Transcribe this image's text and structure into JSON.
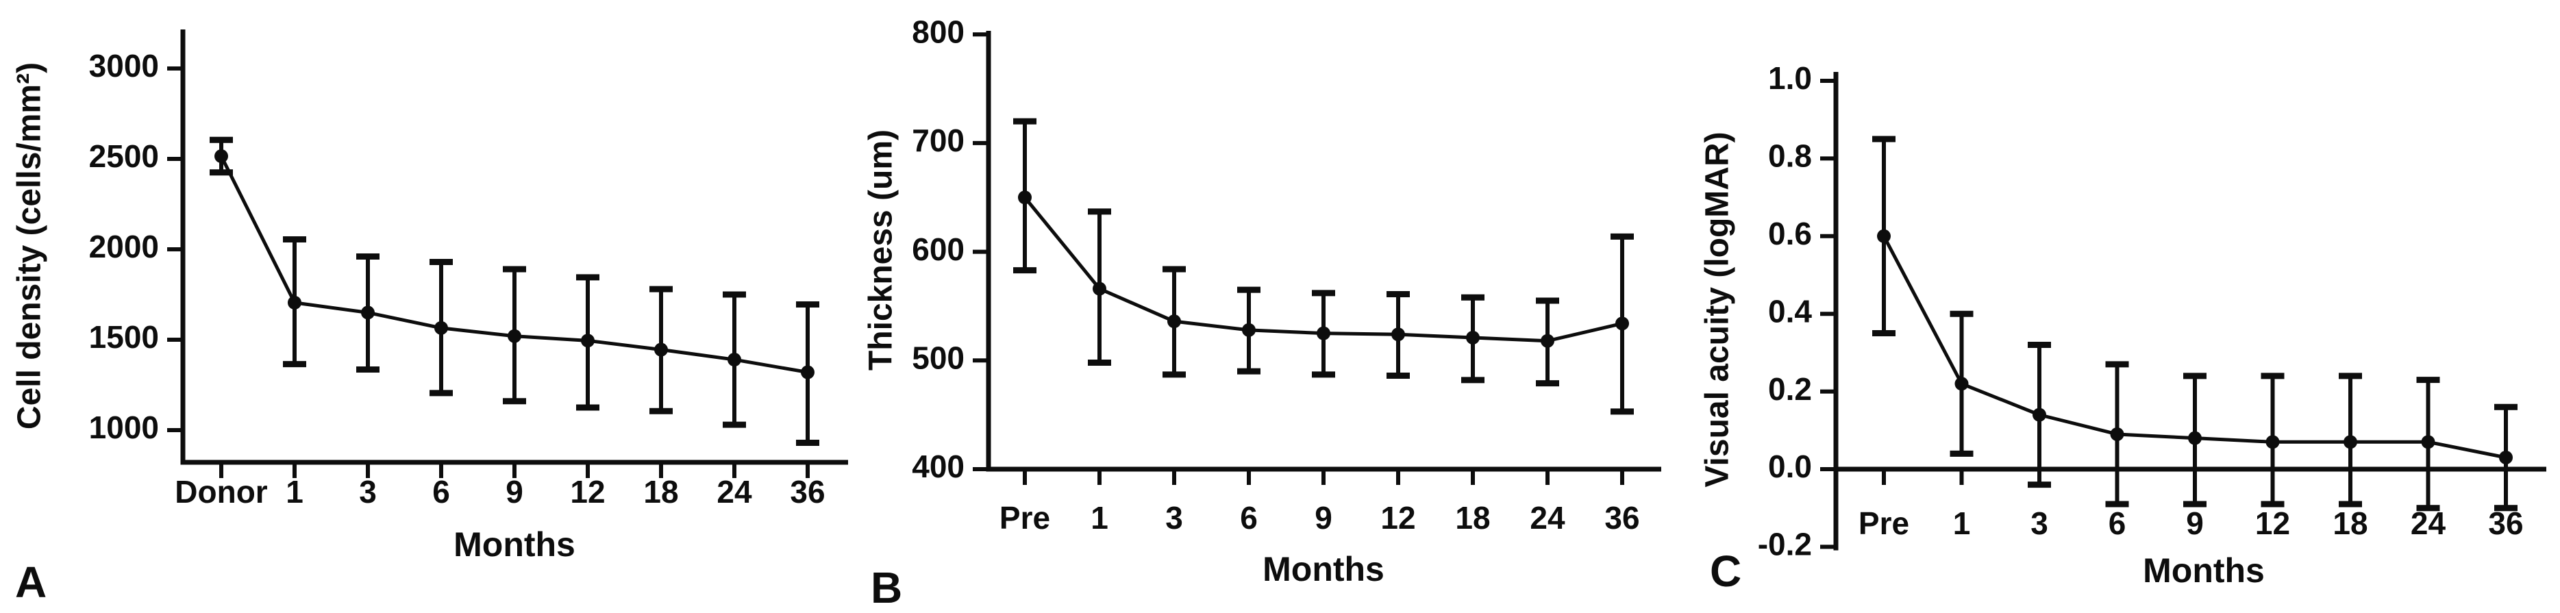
{
  "figure": {
    "background_color": "#ffffff",
    "ink_color": "#0d0d0d"
  },
  "chart_data": [
    {
      "type": "line",
      "panel_label": "A",
      "ylabel": "Cell density (cells/mm²)",
      "xlabel": "Months",
      "categories": [
        "Donor",
        "1",
        "3",
        "6",
        "9",
        "12",
        "18",
        "24",
        "36"
      ],
      "values": [
        2515,
        1705,
        1650,
        1565,
        1520,
        1495,
        1445,
        1390,
        1320
      ],
      "error_low": [
        2425,
        1365,
        1335,
        1205,
        1160,
        1125,
        1105,
        1030,
        930
      ],
      "error_high": [
        2605,
        2055,
        1960,
        1930,
        1890,
        1845,
        1780,
        1750,
        1695
      ],
      "yticks": [
        1000,
        1500,
        2000,
        2500,
        3000
      ],
      "ytick_labels": [
        "1000",
        "1500",
        "2000",
        "2500",
        "3000"
      ],
      "ylim": [
        820,
        3215
      ],
      "x_axis_at_value": 820,
      "grid": false,
      "legend": "none",
      "marker": "filled-circle",
      "error_bars": true
    },
    {
      "type": "line",
      "panel_label": "B",
      "ylabel": "Thickness (um)",
      "xlabel": "Months",
      "categories": [
        "Pre",
        "1",
        "3",
        "6",
        "9",
        "12",
        "18",
        "24",
        "36"
      ],
      "values": [
        650,
        566,
        536,
        528,
        525,
        524,
        521,
        518,
        534
      ],
      "error_low": [
        583,
        498,
        487,
        490,
        487,
        486,
        482,
        479,
        453
      ],
      "error_high": [
        720,
        637,
        584,
        565,
        562,
        561,
        558,
        555,
        614
      ],
      "yticks": [
        400,
        500,
        600,
        700,
        800
      ],
      "ytick_labels": [
        "400",
        "500",
        "600",
        "700",
        "800"
      ],
      "ylim": [
        400,
        803
      ],
      "x_axis_at_value": 400,
      "grid": false,
      "legend": "none",
      "marker": "filled-circle",
      "error_bars": true
    },
    {
      "type": "line",
      "panel_label": "C",
      "ylabel": "Visual acuity (logMAR)",
      "xlabel": "Months",
      "categories": [
        "Pre",
        "1",
        "3",
        "6",
        "9",
        "12",
        "18",
        "24",
        "36"
      ],
      "values": [
        0.6,
        0.22,
        0.14,
        0.09,
        0.08,
        0.07,
        0.07,
        0.07,
        0.03
      ],
      "error_low": [
        0.35,
        0.04,
        -0.04,
        -0.09,
        -0.09,
        -0.09,
        -0.09,
        -0.1,
        -0.1
      ],
      "error_high": [
        0.85,
        0.4,
        0.32,
        0.27,
        0.24,
        0.24,
        0.24,
        0.23,
        0.16
      ],
      "yticks": [
        -0.2,
        0.0,
        0.2,
        0.4,
        0.6,
        0.8,
        1.0
      ],
      "ytick_labels": [
        "-0.2",
        "0.0",
        "0.2",
        "0.4",
        "0.6",
        "0.8",
        "1.0"
      ],
      "ylim": [
        -0.203,
        1.023
      ],
      "x_axis_at_value": 0.0,
      "grid": false,
      "legend": "none",
      "marker": "filled-circle",
      "error_bars": true
    }
  ]
}
